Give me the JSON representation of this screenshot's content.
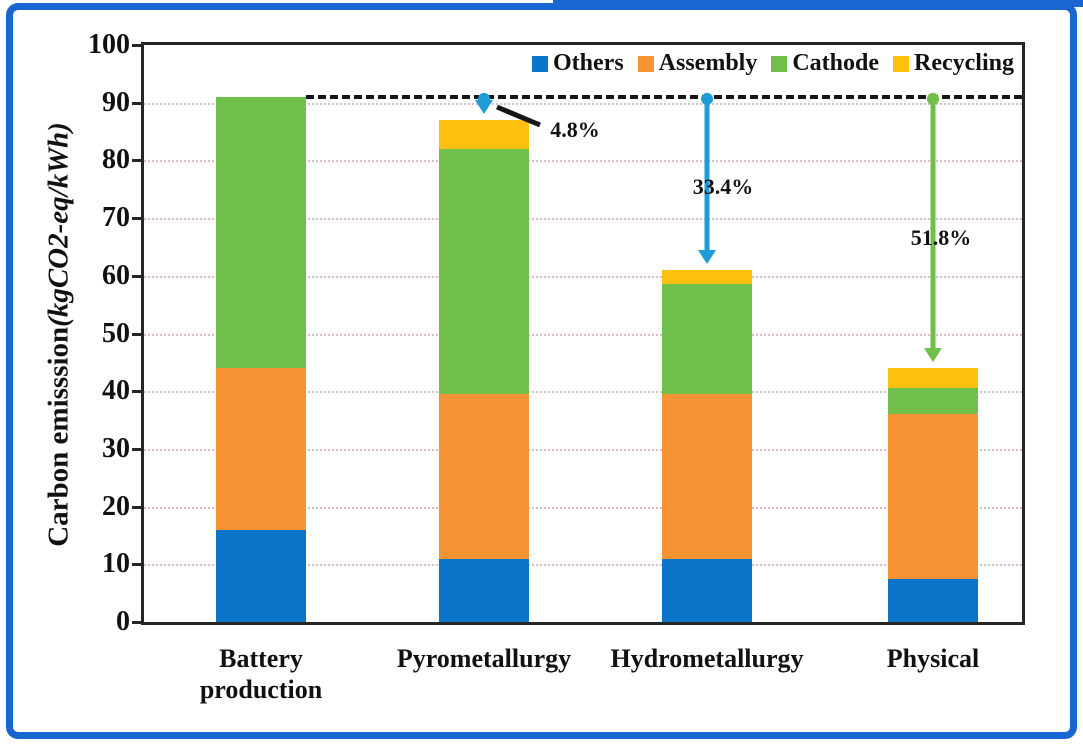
{
  "figure": {
    "frame_color": "#1766D2",
    "axis_color": "#262626",
    "background": "#ffffff",
    "gridline_color": "#d9bfbf"
  },
  "chart_data": {
    "type": "bar",
    "stacked": true,
    "title": "",
    "ylabel_prefix": "Carbon emisssion",
    "ylabel_unit": "(kgCO2-eq/kWh)",
    "ylim": [
      0,
      100
    ],
    "ytick_step": 10,
    "grid": "dotted-horizontal",
    "legend_position": "top-right-inside",
    "categories": [
      "Battery production",
      "Pyrometallurgy",
      "Hydrometallurgy",
      "Physical"
    ],
    "series": [
      {
        "name": "Others",
        "color": "#0C74C8",
        "values": [
          16,
          11,
          11,
          7.5
        ]
      },
      {
        "name": "Assembly",
        "color": "#F79333",
        "values": [
          28,
          28.5,
          28.5,
          28.5
        ]
      },
      {
        "name": "Cathode",
        "color": "#71BF4B",
        "values": [
          47,
          42.5,
          19,
          4.5
        ]
      },
      {
        "name": "Recycling",
        "color": "#FEC00F",
        "values": [
          0,
          5,
          2.5,
          3.5
        ]
      }
    ],
    "totals": [
      91,
      87,
      61,
      44
    ],
    "reference_line": {
      "value": 91,
      "style": "dashed",
      "color": "#161616"
    },
    "annotations": [
      {
        "label": "4.8%",
        "from": 91,
        "to": 87,
        "category_index": 1,
        "arrow_color": "#1E9CD9"
      },
      {
        "label": "33.4%",
        "from": 91,
        "to": 61,
        "category_index": 2,
        "arrow_color": "#1E9CD9"
      },
      {
        "label": "51.8%",
        "from": 91,
        "to": 44,
        "category_index": 3,
        "arrow_color": "#71BF4B"
      }
    ]
  }
}
